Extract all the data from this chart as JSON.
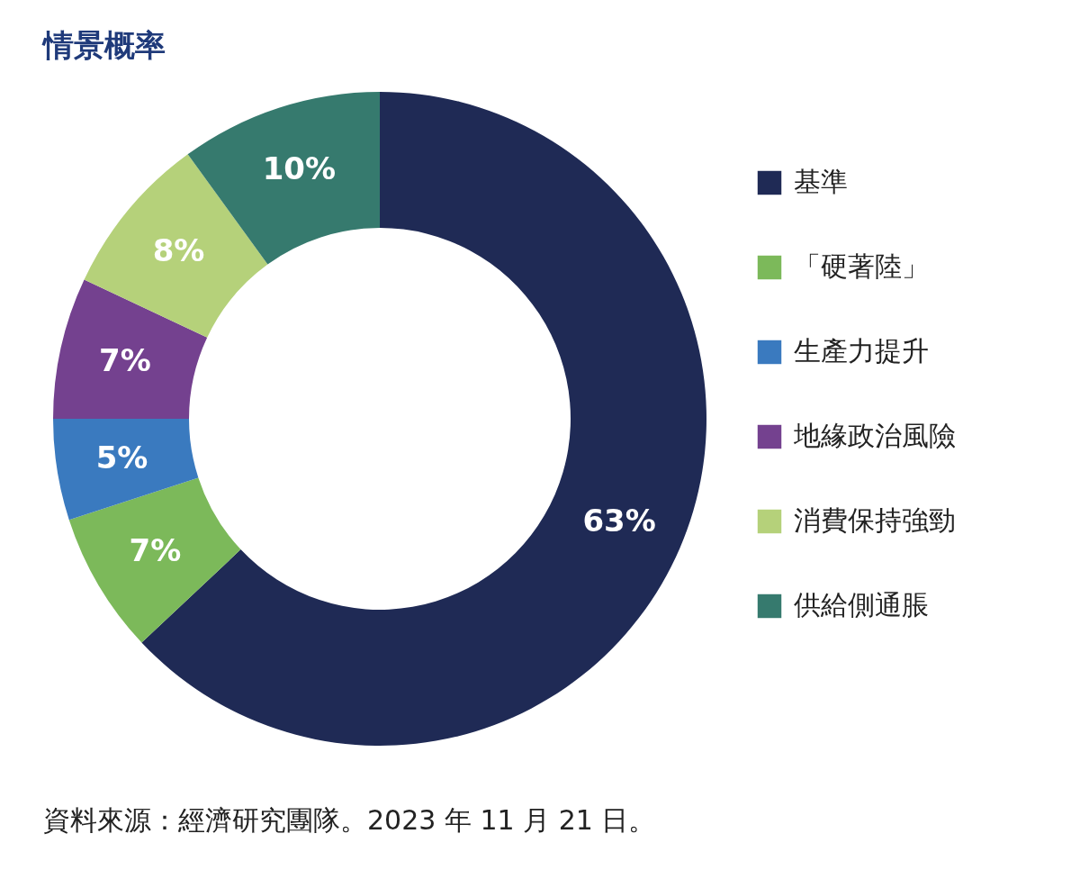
{
  "chart_data": {
    "type": "donut",
    "title": "情景概率",
    "categories": [
      "基準",
      "「硬著陸」",
      "生產力提升",
      "地緣政治風險",
      "消費保持強勁",
      "供給側通脹"
    ],
    "values": [
      63,
      7,
      5,
      7,
      8,
      10
    ],
    "colors": [
      "#1f2a55",
      "#7cb95a",
      "#3a7abf",
      "#74418f",
      "#b5d17a",
      "#367a6e"
    ],
    "value_labels": [
      "63%",
      "7%",
      "5%",
      "7%",
      "8%",
      "10%"
    ],
    "legend": "right",
    "annotations": [
      "資料來源：經濟研究團隊。2023 年 11 月 21 日。"
    ]
  }
}
